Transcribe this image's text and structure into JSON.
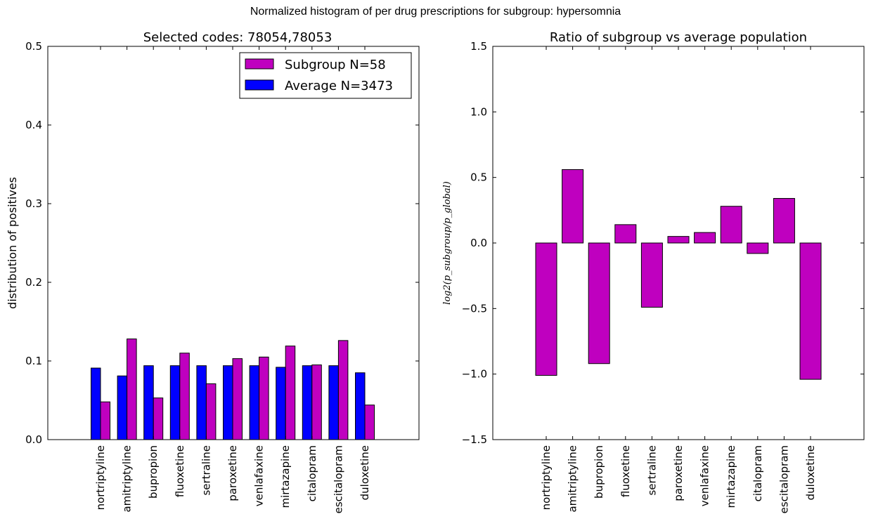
{
  "figure": {
    "suptitle": "Normalized histogram of per drug prescriptions for subgroup: hypersomnia"
  },
  "colors": {
    "subgroup": "#bf00bf",
    "average": "#0000ff"
  },
  "chart_data": [
    {
      "type": "bar",
      "title": "Selected codes: 78054,78053",
      "xlabel": "",
      "ylabel": "distribution of positives",
      "ylim": [
        0.0,
        0.5
      ],
      "yticks": [
        "0.0",
        "0.1",
        "0.2",
        "0.3",
        "0.4",
        "0.5"
      ],
      "categories": [
        "nortriptyline",
        "amitriptyline",
        "bupropion",
        "fluoxetine",
        "sertraline",
        "paroxetine",
        "venlafaxine",
        "mirtazapine",
        "citalopram",
        "escitalopram",
        "duloxetine"
      ],
      "series": [
        {
          "name": "Average N=3473",
          "values": [
            0.091,
            0.081,
            0.094,
            0.094,
            0.094,
            0.094,
            0.094,
            0.092,
            0.094,
            0.094,
            0.085
          ]
        },
        {
          "name": "Subgroup N=58",
          "values": [
            0.048,
            0.128,
            0.053,
            0.11,
            0.071,
            0.103,
            0.105,
            0.119,
            0.095,
            0.126,
            0.044
          ]
        }
      ],
      "legend": {
        "position": "top-right",
        "entries": [
          "Subgroup N=58",
          "Average N=3473"
        ]
      },
      "grid": false
    },
    {
      "type": "bar",
      "title": "Ratio of subgroup vs average population",
      "xlabel": "",
      "ylabel": "log2(p_subgroup/p_global)",
      "ylim": [
        -1.5,
        1.5
      ],
      "yticks": [
        "−1.5",
        "−1.0",
        "−0.5",
        "0.0",
        "0.5",
        "1.0",
        "1.5"
      ],
      "categories": [
        "nortriptyline",
        "amitriptyline",
        "bupropion",
        "fluoxetine",
        "sertraline",
        "paroxetine",
        "venlafaxine",
        "mirtazapine",
        "citalopram",
        "escitalopram",
        "duloxetine"
      ],
      "values": [
        -1.01,
        0.56,
        -0.92,
        0.14,
        -0.49,
        0.05,
        0.08,
        0.28,
        -0.08,
        0.34,
        -1.04
      ],
      "grid": false
    }
  ]
}
